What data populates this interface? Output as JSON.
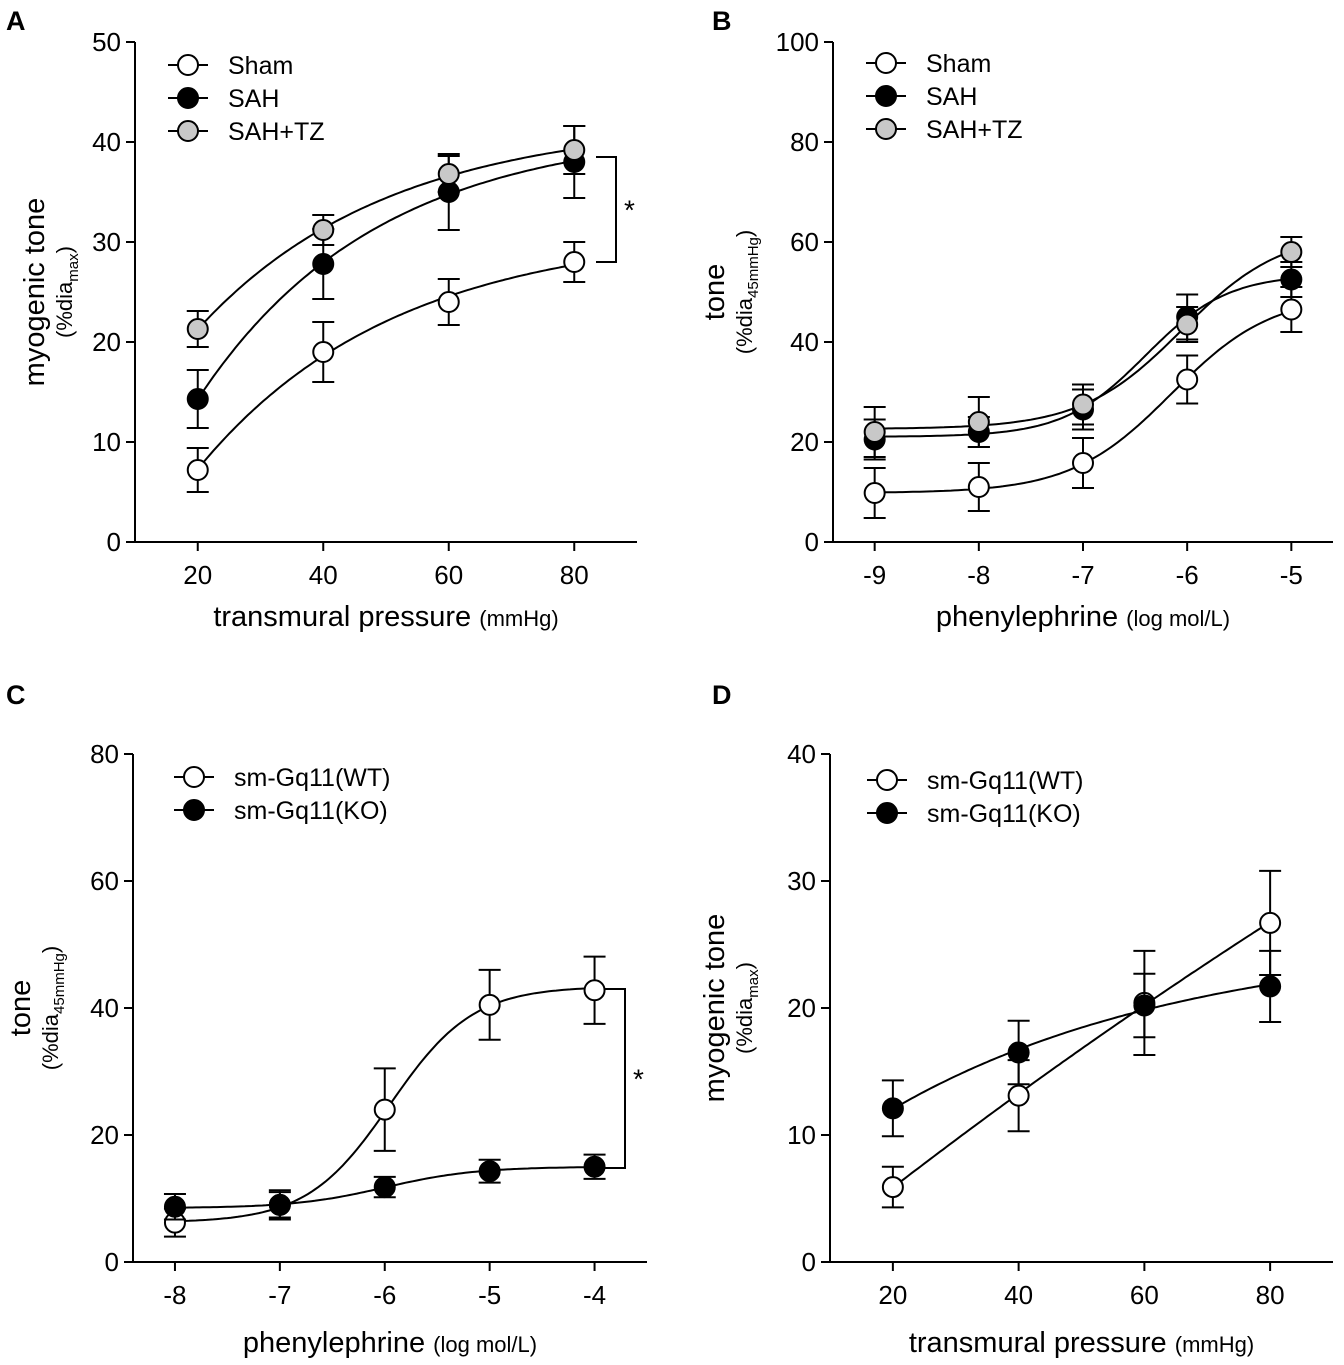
{
  "chart_data": [
    {
      "panel": "A",
      "type": "line",
      "curve": "fitted",
      "xaxis": "linear",
      "xlabel": "transmural pressure",
      "xunit": "(mmHg)",
      "ylabel": "myogenic tone",
      "yunit_prefix": "(%dia",
      "yunit_sub": "max",
      "yunit_suffix": ")",
      "xlim": [
        10,
        90
      ],
      "ylim": [
        0,
        50
      ],
      "xticks": [
        20,
        40,
        60,
        80
      ],
      "xtick_labels": [
        "20",
        "40",
        "60",
        "80"
      ],
      "yticks": [
        0,
        10,
        20,
        30,
        40,
        50
      ],
      "ytick_labels": [
        "0",
        "10",
        "20",
        "30",
        "40",
        "50"
      ],
      "legend_position": "top-left",
      "significance": {
        "label": "*",
        "y_low": 28,
        "y_high": 38.5
      },
      "series": [
        {
          "name": "Sham",
          "marker": "open",
          "x": [
            20,
            40,
            60,
            80
          ],
          "y": [
            7.2,
            19,
            24,
            28
          ],
          "err": [
            2.2,
            3,
            2.3,
            2
          ]
        },
        {
          "name": "SAH",
          "marker": "black",
          "x": [
            20,
            40,
            60,
            80
          ],
          "y": [
            14.3,
            27.8,
            35,
            38
          ],
          "err": [
            2.9,
            3.5,
            3.8,
            3.6
          ]
        },
        {
          "name": "SAH+TZ",
          "marker": "gray",
          "x": [
            20,
            40,
            60,
            80
          ],
          "y": [
            21.3,
            31.2,
            36.8,
            39.2
          ],
          "err": [
            1.8,
            1.5,
            1.8,
            2.4
          ]
        }
      ]
    },
    {
      "panel": "B",
      "type": "line",
      "curve": "fitted",
      "xaxis": "log",
      "xlabel": "phenylephrine",
      "xunit": "(log mol/L)",
      "ylabel": "tone",
      "yunit_prefix": "(%dia",
      "yunit_sub": "45mmHg",
      "yunit_suffix": ")",
      "xlim": [
        -9.4,
        -4.6
      ],
      "ylim": [
        0,
        100
      ],
      "xticks": [
        -9,
        -8,
        -7,
        -6,
        -5
      ],
      "xtick_labels": [
        "-9",
        "-8",
        "-7",
        "-6",
        "-5"
      ],
      "yticks": [
        0,
        20,
        40,
        60,
        80,
        100
      ],
      "ytick_labels": [
        "0",
        "20",
        "40",
        "60",
        "80",
        "100"
      ],
      "legend_position": "top-left",
      "series": [
        {
          "name": "Sham",
          "marker": "open",
          "x": [
            -9,
            -8,
            -7,
            -6,
            -5
          ],
          "y": [
            9.8,
            11,
            15.8,
            32.5,
            46.5
          ],
          "err": [
            5,
            4.8,
            5,
            4.8,
            4.5
          ]
        },
        {
          "name": "SAH",
          "marker": "black",
          "x": [
            -9,
            -8,
            -7,
            -6,
            -5
          ],
          "y": [
            20.5,
            22,
            26.5,
            45,
            52.5
          ],
          "err": [
            4,
            3,
            4,
            4.5,
            3.5
          ]
        },
        {
          "name": "SAH+TZ",
          "marker": "gray",
          "x": [
            -9,
            -8,
            -7,
            -6,
            -5
          ],
          "y": [
            22,
            24,
            27.5,
            43.5,
            58
          ],
          "err": [
            5,
            5,
            4,
            3.5,
            3
          ]
        }
      ]
    },
    {
      "panel": "C",
      "type": "line",
      "curve": "fitted",
      "xaxis": "log",
      "xlabel": "phenylephrine",
      "xunit": "(log mol/L)",
      "ylabel": "tone",
      "yunit_prefix": "(%dia",
      "yunit_sub": "45mmHg",
      "yunit_suffix": ")",
      "xlim": [
        -8.4,
        -3.5
      ],
      "ylim": [
        0,
        80
      ],
      "xticks": [
        -8,
        -7,
        -6,
        -5,
        -4
      ],
      "xtick_labels": [
        "-8",
        "-7",
        "-6",
        "-5",
        "-4"
      ],
      "yticks": [
        0,
        20,
        40,
        60,
        80
      ],
      "ytick_labels": [
        "0",
        "20",
        "40",
        "60",
        "80"
      ],
      "legend_position": "top-left",
      "significance": {
        "label": "*",
        "y_low": 14.8,
        "y_high": 43
      },
      "series": [
        {
          "name": "sm-Gq11(WT)",
          "marker": "open",
          "x": [
            -8,
            -7,
            -6,
            -5,
            -4
          ],
          "y": [
            6.2,
            9,
            24,
            40.5,
            42.8
          ],
          "err": [
            2.2,
            2.3,
            6.5,
            5.5,
            5.3
          ]
        },
        {
          "name": "sm-Gq11(KO)",
          "marker": "black",
          "x": [
            -8,
            -7,
            -6,
            -5,
            -4
          ],
          "y": [
            8.7,
            9,
            11.8,
            14.3,
            15
          ],
          "err": [
            2,
            2,
            1.6,
            1.8,
            1.9
          ]
        }
      ]
    },
    {
      "panel": "D",
      "type": "line",
      "curve": "fitted",
      "xaxis": "linear",
      "xlabel": "transmural pressure",
      "xunit": "(mmHg)",
      "ylabel": "myogenic tone",
      "yunit_prefix": "(%dia",
      "yunit_sub": "max",
      "yunit_suffix": ")",
      "xlim": [
        10,
        90
      ],
      "ylim": [
        0,
        40
      ],
      "xticks": [
        20,
        40,
        60,
        80
      ],
      "xtick_labels": [
        "20",
        "40",
        "60",
        "80"
      ],
      "yticks": [
        0,
        10,
        20,
        30,
        40
      ],
      "ytick_labels": [
        "0",
        "10",
        "20",
        "30",
        "40"
      ],
      "legend_position": "top-left",
      "series": [
        {
          "name": "sm-Gq11(WT)",
          "marker": "open",
          "x": [
            20,
            40,
            60,
            80
          ],
          "y": [
            5.9,
            13.1,
            20.4,
            26.7
          ],
          "err": [
            1.6,
            2.8,
            4.1,
            4.1
          ]
        },
        {
          "name": "sm-Gq11(KO)",
          "marker": "black",
          "x": [
            20,
            40,
            60,
            80
          ],
          "y": [
            12.1,
            16.5,
            20.2,
            21.7
          ],
          "err": [
            2.2,
            2.5,
            2.5,
            2.8
          ]
        }
      ]
    }
  ],
  "colors": {
    "open": "#ffffff",
    "black": "#000000",
    "gray": "#c8c8c8",
    "stroke": "#000000"
  }
}
